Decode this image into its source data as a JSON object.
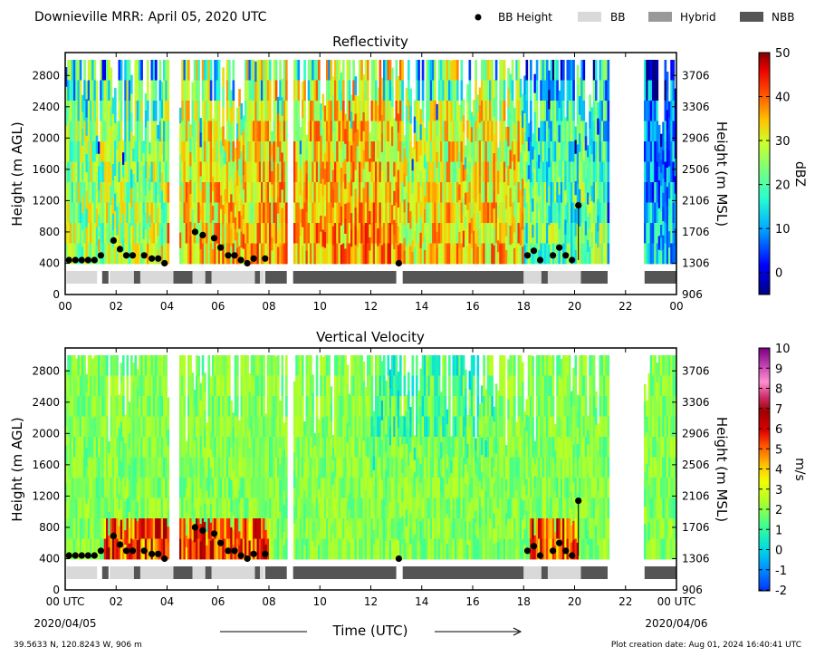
{
  "figure": {
    "title": "Downieville MRR:  April 05, 2020 UTC",
    "footer_left": "39.5633 N, 120.8243 W, 906 m",
    "footer_right": "Plot creation date: Aug 01, 2024 16:40:41 UTC",
    "x_axis_title": "Time (UTC)",
    "x_start_label": "00 UTC",
    "x_start_date": "2020/04/05",
    "x_end_label": "00 UTC",
    "x_end_date": "2020/04/06"
  },
  "legend": {
    "bb_height": "BB Height",
    "bb": "BB",
    "hybrid": "Hybrid",
    "nbb": "NBB",
    "colors": {
      "bb": "#d9d9d9",
      "hybrid": "#999999",
      "nbb": "#555555"
    }
  },
  "chart_data": [
    {
      "type": "heatmap",
      "title": "Reflectivity",
      "ylabel": "Height (m AGL)",
      "ylabel_right": "Height (m MSL)",
      "colorbar_label": "dBZ",
      "colorbar_ticks": [
        "50",
        "40",
        "30",
        "20",
        "10",
        "0"
      ],
      "colorbar_range": [
        -5,
        50
      ],
      "ylim": [
        0,
        3000
      ],
      "x_ticks": [
        "00",
        "02",
        "04",
        "06",
        "08",
        "10",
        "12",
        "14",
        "16",
        "18",
        "20",
        "22",
        "00"
      ],
      "y_ticks": [
        "0",
        "400",
        "800",
        "1200",
        "1600",
        "2000",
        "2400",
        "2800"
      ],
      "y_ticks_right": [
        "906",
        "1306",
        "1706",
        "2106",
        "2506",
        "2906",
        "3306",
        "3706"
      ]
    },
    {
      "type": "heatmap",
      "title": "Vertical Velocity",
      "ylabel": "Height (m AGL)",
      "ylabel_right": "Height (m MSL)",
      "colorbar_label": "m/s",
      "colorbar_ticks": [
        "10",
        "9",
        "8",
        "7",
        "6",
        "5",
        "4",
        "3",
        "2",
        "1",
        "0",
        "-1",
        "-2"
      ],
      "colorbar_range": [
        -2,
        10
      ],
      "ylim": [
        0,
        3000
      ],
      "x_ticks": [
        "00",
        "02",
        "04",
        "06",
        "08",
        "10",
        "12",
        "14",
        "16",
        "18",
        "20",
        "22",
        "00"
      ],
      "y_ticks": [
        "0",
        "400",
        "800",
        "1200",
        "1600",
        "2000",
        "2400",
        "2800"
      ],
      "y_ticks_right": [
        "906",
        "1306",
        "1706",
        "2106",
        "2506",
        "2906",
        "3306",
        "3706"
      ]
    }
  ],
  "bb_points": [
    [
      0.15,
      440
    ],
    [
      0.4,
      440
    ],
    [
      0.65,
      440
    ],
    [
      0.9,
      440
    ],
    [
      1.15,
      440
    ],
    [
      1.4,
      500
    ],
    [
      1.9,
      690
    ],
    [
      2.15,
      580
    ],
    [
      2.4,
      500
    ],
    [
      2.65,
      500
    ],
    [
      3.1,
      500
    ],
    [
      3.4,
      460
    ],
    [
      3.65,
      460
    ],
    [
      3.9,
      400
    ],
    [
      5.1,
      800
    ],
    [
      5.4,
      760
    ],
    [
      5.85,
      720
    ],
    [
      6.1,
      600
    ],
    [
      6.4,
      500
    ],
    [
      6.65,
      500
    ],
    [
      6.9,
      440
    ],
    [
      7.15,
      400
    ],
    [
      7.4,
      460
    ],
    [
      7.85,
      460
    ],
    [
      13.1,
      400
    ],
    [
      18.15,
      500
    ],
    [
      18.4,
      560
    ],
    [
      18.65,
      440
    ],
    [
      19.15,
      500
    ],
    [
      19.4,
      600
    ],
    [
      19.65,
      500
    ],
    [
      19.9,
      440
    ],
    [
      20.15,
      1140
    ]
  ],
  "bb_bar": [
    {
      "start": 0.05,
      "end": 1.25,
      "cls": "bb"
    },
    {
      "start": 1.45,
      "end": 1.7,
      "cls": "nbb"
    },
    {
      "start": 1.75,
      "end": 2.7,
      "cls": "bb"
    },
    {
      "start": 2.7,
      "end": 2.95,
      "cls": "nbb"
    },
    {
      "start": 2.95,
      "end": 4.25,
      "cls": "bb"
    },
    {
      "start": 4.25,
      "end": 5.0,
      "cls": "nbb"
    },
    {
      "start": 5.0,
      "end": 5.5,
      "cls": "bb"
    },
    {
      "start": 5.5,
      "end": 5.75,
      "cls": "nbb"
    },
    {
      "start": 5.75,
      "end": 7.45,
      "cls": "bb"
    },
    {
      "start": 7.45,
      "end": 7.65,
      "cls": "nbb"
    },
    {
      "start": 7.65,
      "end": 7.8,
      "cls": "bb"
    },
    {
      "start": 7.85,
      "end": 8.7,
      "cls": "nbb"
    },
    {
      "start": 8.95,
      "end": 13.0,
      "cls": "nbb"
    },
    {
      "start": 13.25,
      "end": 18.0,
      "cls": "nbb"
    },
    {
      "start": 18.0,
      "end": 18.7,
      "cls": "bb"
    },
    {
      "start": 18.7,
      "end": 18.95,
      "cls": "nbb"
    },
    {
      "start": 18.95,
      "end": 20.25,
      "cls": "bb"
    },
    {
      "start": 20.25,
      "end": 21.3,
      "cls": "nbb"
    },
    {
      "start": 22.75,
      "end": 24.0,
      "cls": "nbb"
    }
  ],
  "data_gaps": [
    [
      4.05,
      4.45
    ],
    [
      8.7,
      8.95
    ],
    [
      21.35,
      22.75
    ]
  ]
}
